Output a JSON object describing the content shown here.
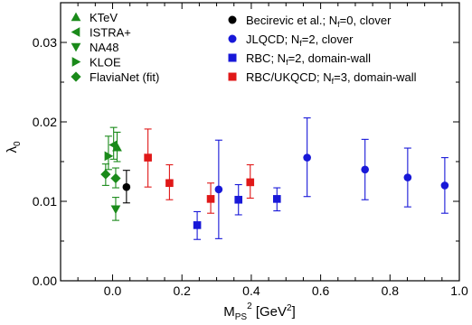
{
  "chart_data": {
    "type": "scatter",
    "xlabel": {
      "main": "M",
      "sub": "PS",
      "sup": "2",
      "unit": " [GeV",
      "unit_sup": "2",
      "unit_close": "]"
    },
    "ylabel": {
      "main": "λ",
      "sub": "0"
    },
    "xlim": [
      -0.15,
      1.0
    ],
    "ylim": [
      0.0,
      0.035
    ],
    "xticks": [
      0.0,
      0.2,
      0.4,
      0.6,
      0.8,
      1.0
    ],
    "xtick_labels": [
      "0.0",
      "0.2",
      "0.4",
      "0.6",
      "0.8",
      "1.0"
    ],
    "yticks": [
      0.0,
      0.01,
      0.02,
      0.03
    ],
    "ytick_labels": [
      "0.00",
      "0.01",
      "0.02",
      "0.03"
    ],
    "grid": false,
    "legend_left": [
      {
        "key": "ktev",
        "label": "KTeV"
      },
      {
        "key": "istra",
        "label": "ISTRA+"
      },
      {
        "key": "na48",
        "label": "NA48"
      },
      {
        "key": "kloe",
        "label": "KLOE"
      },
      {
        "key": "flavianet",
        "label": "FlaviaNet (fit)"
      }
    ],
    "legend_right": [
      {
        "key": "becirevic",
        "parts": [
          "Becirevic et al.; N",
          "f",
          "=0, clover"
        ]
      },
      {
        "key": "jlqcd",
        "parts": [
          "JLQCD; N",
          "f",
          "=2, clover"
        ]
      },
      {
        "key": "rbc",
        "parts": [
          "RBC;  N",
          "f",
          "=2, domain-wall"
        ]
      },
      {
        "key": "rbcukqcd",
        "parts": [
          "RBC/UKQCD; N",
          "f",
          "=3, domain-wall"
        ]
      }
    ],
    "series": [
      {
        "key": "ktev",
        "marker": "triangle-up",
        "color": "#1a8a1a",
        "points": [
          {
            "x": 0.013,
            "y": 0.0168,
            "lo": 0.015,
            "hi": 0.0187
          }
        ]
      },
      {
        "key": "istra",
        "marker": "triangle-left",
        "color": "#1a8a1a",
        "points": [
          {
            "x": 0.003,
            "y": 0.0171,
            "lo": 0.0153,
            "hi": 0.0193
          }
        ]
      },
      {
        "key": "na48",
        "marker": "triangle-down",
        "color": "#1a8a1a",
        "points": [
          {
            "x": 0.009,
            "y": 0.009,
            "lo": 0.0076,
            "hi": 0.0105
          }
        ]
      },
      {
        "key": "kloe",
        "marker": "triangle-right",
        "color": "#1a8a1a",
        "points": [
          {
            "x": -0.012,
            "y": 0.0157,
            "lo": 0.014,
            "hi": 0.0182
          }
        ]
      },
      {
        "key": "flavianet",
        "marker": "diamond",
        "color": "#1a8a1a",
        "points": [
          {
            "x": -0.02,
            "y": 0.0134,
            "lo": 0.012,
            "hi": 0.0147
          },
          {
            "x": 0.009,
            "y": 0.0129,
            "lo": 0.0117,
            "hi": 0.0142
          }
        ]
      },
      {
        "key": "becirevic",
        "marker": "circle",
        "color": "#000000",
        "points": [
          {
            "x": 0.04,
            "y": 0.0118,
            "lo": 0.0098,
            "hi": 0.0139
          }
        ]
      },
      {
        "key": "jlqcd",
        "marker": "circle",
        "color": "#1818d8",
        "points": [
          {
            "x": 0.306,
            "y": 0.0115,
            "lo": 0.0053,
            "hi": 0.0177
          },
          {
            "x": 0.561,
            "y": 0.0155,
            "lo": 0.0106,
            "hi": 0.0205
          },
          {
            "x": 0.728,
            "y": 0.014,
            "lo": 0.0102,
            "hi": 0.0178
          },
          {
            "x": 0.851,
            "y": 0.013,
            "lo": 0.0093,
            "hi": 0.0167
          },
          {
            "x": 0.958,
            "y": 0.012,
            "lo": 0.0085,
            "hi": 0.0155
          }
        ]
      },
      {
        "key": "rbc",
        "marker": "square",
        "color": "#1818d8",
        "points": [
          {
            "x": 0.244,
            "y": 0.007,
            "lo": 0.0052,
            "hi": 0.0087
          },
          {
            "x": 0.363,
            "y": 0.0102,
            "lo": 0.0083,
            "hi": 0.0121
          },
          {
            "x": 0.474,
            "y": 0.0103,
            "lo": 0.0088,
            "hi": 0.0117
          }
        ]
      },
      {
        "key": "rbcukqcd",
        "marker": "square",
        "color": "#e01818",
        "points": [
          {
            "x": 0.102,
            "y": 0.0155,
            "lo": 0.0118,
            "hi": 0.0191
          },
          {
            "x": 0.164,
            "y": 0.0123,
            "lo": 0.0102,
            "hi": 0.0146
          },
          {
            "x": 0.283,
            "y": 0.0103,
            "lo": 0.0085,
            "hi": 0.0123
          },
          {
            "x": 0.397,
            "y": 0.0124,
            "lo": 0.0104,
            "hi": 0.0146
          }
        ]
      }
    ]
  }
}
